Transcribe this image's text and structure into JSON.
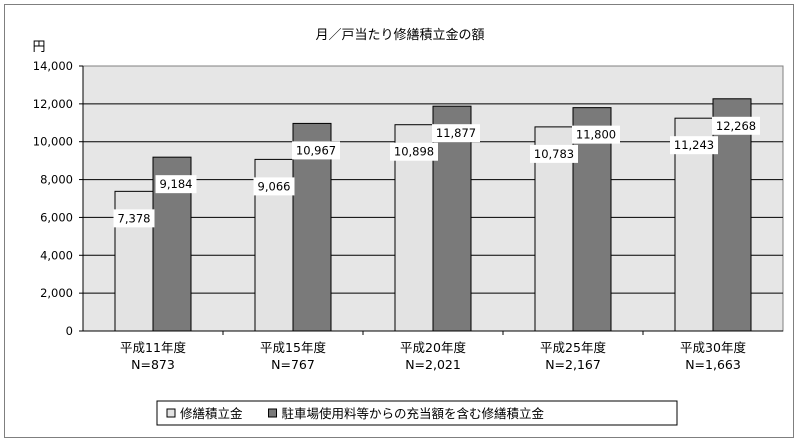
{
  "chart_data": {
    "type": "bar",
    "title": "月／戸当たり修繕積立金の額",
    "ylabel": "円",
    "ylim": [
      0,
      14000
    ],
    "yticks": [
      0,
      2000,
      4000,
      6000,
      8000,
      10000,
      12000,
      14000
    ],
    "ytick_labels": [
      "0",
      "2,000",
      "4,000",
      "6,000",
      "8,000",
      "10,000",
      "12,000",
      "14,000"
    ],
    "categories": [
      "平成11年度",
      "平成15年度",
      "平成20年度",
      "平成25年度",
      "平成30年度"
    ],
    "category_sublabels": [
      "N=873",
      "N=767",
      "N=2,021",
      "N=2,167",
      "N=1,663"
    ],
    "series": [
      {
        "name": "修繕積立金",
        "color": "#e3e3e3",
        "values": [
          7378,
          9066,
          10898,
          10783,
          11243
        ],
        "labels": [
          "7,378",
          "9,066",
          "10,898",
          "10,783",
          "11,243"
        ]
      },
      {
        "name": "駐車場使用料等からの充当額を含む修繕積立金",
        "color": "#7a7a7a",
        "values": [
          9184,
          10967,
          11877,
          11800,
          12268
        ],
        "labels": [
          "9,184",
          "10,967",
          "11,877",
          "11,800",
          "12,268"
        ]
      }
    ],
    "grid": true,
    "plot_background": "#e6e6e6",
    "legend_position": "bottom"
  }
}
